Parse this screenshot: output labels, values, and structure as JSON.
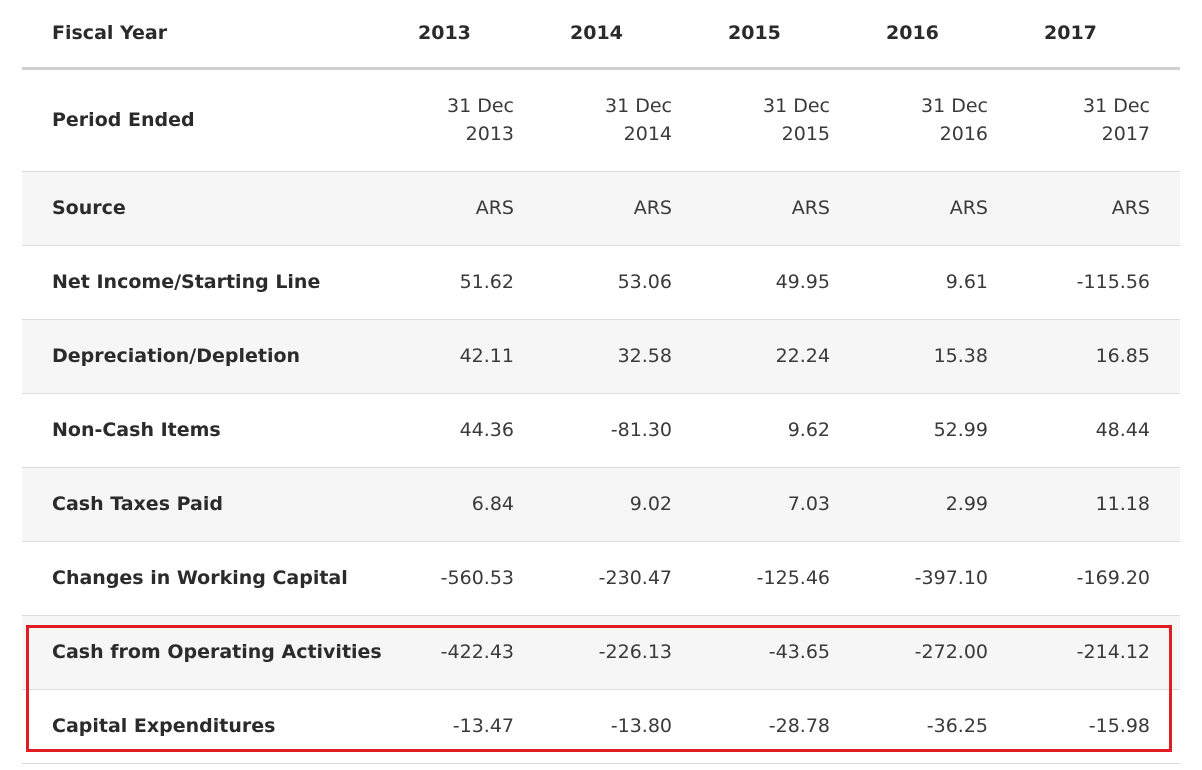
{
  "header": {
    "label": "Fiscal Year",
    "years": [
      "2013",
      "2014",
      "2015",
      "2016",
      "2017"
    ]
  },
  "period_ended": {
    "label": "Period Ended",
    "dates": [
      {
        "day_month": "31 Dec",
        "year": "2013"
      },
      {
        "day_month": "31 Dec",
        "year": "2014"
      },
      {
        "day_month": "31 Dec",
        "year": "2015"
      },
      {
        "day_month": "31 Dec",
        "year": "2016"
      },
      {
        "day_month": "31 Dec",
        "year": "2017"
      }
    ]
  },
  "rows": [
    {
      "label": "Source",
      "values": [
        "ARS",
        "ARS",
        "ARS",
        "ARS",
        "ARS"
      ],
      "shaded": true
    },
    {
      "label": "Net Income/Starting Line",
      "values": [
        "51.62",
        "53.06",
        "49.95",
        "9.61",
        "-115.56"
      ],
      "shaded": false
    },
    {
      "label": "Depreciation/Depletion",
      "values": [
        "42.11",
        "32.58",
        "22.24",
        "15.38",
        "16.85"
      ],
      "shaded": true
    },
    {
      "label": "Non-Cash Items",
      "values": [
        "44.36",
        "-81.30",
        "9.62",
        "52.99",
        "48.44"
      ],
      "shaded": false
    },
    {
      "label": "Cash Taxes Paid",
      "values": [
        "6.84",
        "9.02",
        "7.03",
        "2.99",
        "11.18"
      ],
      "shaded": true
    },
    {
      "label": "Changes in Working Capital",
      "values": [
        "-560.53",
        "-230.47",
        "-125.46",
        "-397.10",
        "-169.20"
      ],
      "shaded": false
    },
    {
      "label": "Cash from Operating Activities",
      "values": [
        "-422.43",
        "-226.13",
        "-43.65",
        "-272.00",
        "-214.12"
      ],
      "shaded": true
    },
    {
      "label": "Capital Expenditures",
      "values": [
        "-13.47",
        "-13.80",
        "-28.78",
        "-36.25",
        "-15.98"
      ],
      "shaded": false
    }
  ],
  "highlight": {
    "color": "#e01c24",
    "rows": [
      "Cash from Operating Activities",
      "Capital Expenditures"
    ]
  }
}
